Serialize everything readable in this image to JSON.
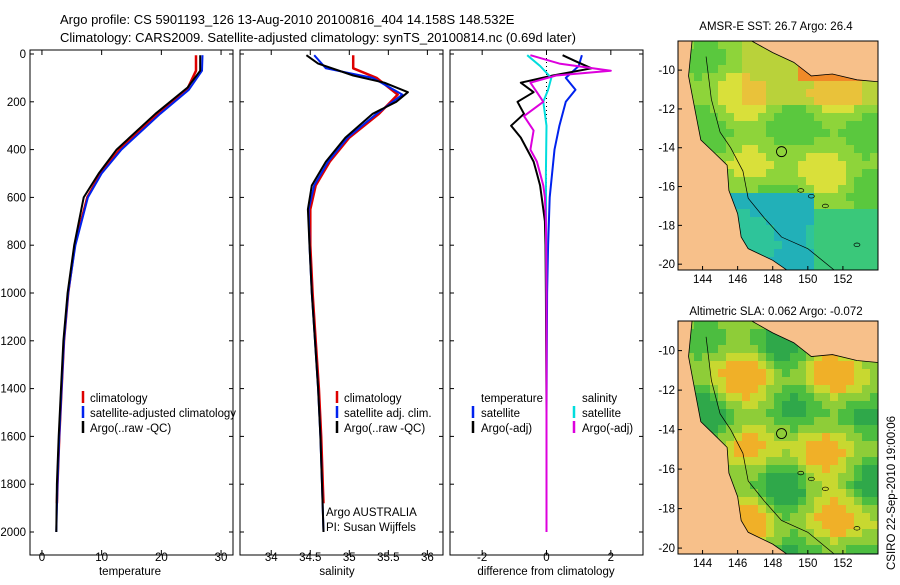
{
  "header": {
    "title_line1": "Argo profile: CS 5901193_126 13-Aug-2010 20100816_404 14.158S 148.532E",
    "title_line2": "Climatology: CARS2009. Satellite-adjusted climatology: synTS_20100814.nc (0.69d later)"
  },
  "footer": {
    "credit": "CSIRO 22-Sep-2010 19:00:06",
    "argo_center": "Argo AUSTRALIA",
    "pi": "PI: Susan Wijffels"
  },
  "colors": {
    "climatology": "#dd0000",
    "satellite": "#0022ee",
    "argo": "#000000",
    "sat_diff": "#00dddd",
    "argo_sal_diff": "#dd00dd",
    "land": "#f7c08a"
  },
  "chart_data": [
    {
      "type": "line",
      "id": "temperature",
      "xlabel": "temperature",
      "ylabel": "",
      "xlim": [
        -2,
        32
      ],
      "ylim": [
        2050,
        0
      ],
      "xticks": [
        "0",
        "10",
        "20",
        "30"
      ],
      "yticks": [
        "0",
        "200",
        "400",
        "600",
        "800",
        "1000",
        "1200",
        "1400",
        "1600",
        "1800",
        "2000"
      ],
      "legend": [
        "climatology",
        "satellite-adjusted climatology",
        "Argo(..raw -QC)"
      ],
      "series": [
        {
          "name": "climatology",
          "depth": [
            5,
            70,
            150,
            250,
            400,
            500,
            600,
            800,
            1000,
            1200,
            1400,
            1600,
            1800,
            1880
          ],
          "values": [
            25.8,
            25.8,
            24.3,
            19.5,
            13.0,
            9.8,
            7.6,
            5.5,
            4.4,
            3.7,
            3.3,
            2.9,
            2.6,
            2.5
          ]
        },
        {
          "name": "satellite-adjusted climatology",
          "depth": [
            5,
            70,
            150,
            250,
            400,
            500,
            600,
            800,
            1000,
            1200,
            1400,
            1600,
            1800,
            2000
          ],
          "values": [
            26.9,
            26.8,
            24.6,
            19.8,
            13.3,
            10.0,
            7.7,
            5.6,
            4.4,
            3.7,
            3.3,
            2.9,
            2.6,
            2.4
          ]
        },
        {
          "name": "Argo(..raw -QC)",
          "depth": [
            5,
            70,
            140,
            250,
            400,
            500,
            600,
            800,
            1000,
            1200,
            1400,
            1600,
            1800,
            2000
          ],
          "values": [
            26.5,
            26.5,
            24.4,
            19.0,
            12.5,
            9.5,
            7.0,
            5.4,
            4.3,
            3.6,
            3.2,
            2.8,
            2.5,
            2.4
          ]
        }
      ]
    },
    {
      "type": "line",
      "id": "salinity",
      "xlabel": "salinity",
      "xlim": [
        33.6,
        36.2
      ],
      "ylim": [
        2050,
        0
      ],
      "xticks": [
        "34",
        "34.5",
        "35",
        "35.5",
        "36"
      ],
      "legend": [
        "climatology",
        "satellite adj. clim.",
        "Argo(..raw -QC)"
      ],
      "series": [
        {
          "name": "climatology",
          "depth": [
            5,
            60,
            100,
            170,
            250,
            350,
            450,
            550,
            650,
            800,
            1000,
            1200,
            1400,
            1600,
            1800,
            1880
          ],
          "values": [
            35.05,
            35.05,
            35.35,
            35.62,
            35.38,
            35.0,
            34.75,
            34.57,
            34.5,
            34.5,
            34.53,
            34.57,
            34.61,
            34.64,
            34.66,
            34.67
          ]
        },
        {
          "name": "satellite adj. clim.",
          "depth": [
            5,
            60,
            100,
            170,
            250,
            350,
            450,
            550,
            650,
            800,
            1000,
            1200,
            1400,
            1600,
            1800,
            2000
          ],
          "values": [
            34.55,
            34.7,
            35.3,
            35.68,
            35.35,
            34.98,
            34.73,
            34.55,
            34.48,
            34.49,
            34.52,
            34.56,
            34.6,
            34.63,
            34.65,
            34.67
          ]
        },
        {
          "name": "Argo(..raw -QC)",
          "depth": [
            5,
            40,
            90,
            120,
            160,
            200,
            250,
            350,
            450,
            550,
            650,
            800,
            1000,
            1200,
            1400,
            1600,
            1800,
            2000
          ],
          "values": [
            34.45,
            34.6,
            35.05,
            35.45,
            35.75,
            35.6,
            35.3,
            34.95,
            34.7,
            34.52,
            34.47,
            34.49,
            34.52,
            34.56,
            34.6,
            34.63,
            34.65,
            34.67
          ]
        }
      ]
    },
    {
      "type": "line",
      "id": "difference",
      "xlabel": "difference from climatology",
      "xlim": [
        -3,
        3
      ],
      "ylim": [
        2050,
        0
      ],
      "xticks": [
        "-2",
        "0",
        "2"
      ],
      "legend_left": {
        "title": "temperature",
        "items": [
          "satellite",
          "Argo(-adj)"
        ]
      },
      "legend_right": {
        "title": "salinity",
        "items": [
          "satellite",
          "Argo(-adj)"
        ]
      },
      "series": [
        {
          "name": "temperature satellite",
          "depth": [
            5,
            50,
            100,
            150,
            200,
            300,
            400,
            600,
            800,
            1000,
            1500,
            2000
          ],
          "values": [
            1.1,
            1.0,
            0.6,
            0.9,
            0.6,
            0.4,
            0.25,
            0.1,
            0.05,
            0.02,
            0.0,
            0.0
          ]
        },
        {
          "name": "temperature Argo(-adj)",
          "depth": [
            5,
            30,
            60,
            90,
            120,
            160,
            200,
            250,
            300,
            350,
            400,
            450,
            500,
            550,
            600,
            650,
            700,
            800,
            1000,
            1500,
            2000
          ],
          "values": [
            0.5,
            0.9,
            1.4,
            0.2,
            -0.8,
            -0.4,
            -0.9,
            -0.7,
            -1.1,
            -0.8,
            -0.6,
            -0.4,
            -0.3,
            -0.2,
            -0.15,
            -0.1,
            -0.05,
            -0.03,
            -0.02,
            0.0,
            0.0
          ]
        },
        {
          "name": "salinity satellite",
          "depth": [
            5,
            50,
            100,
            150,
            200,
            300,
            500,
            800,
            1200,
            1600,
            2000
          ],
          "values": [
            -0.6,
            -0.2,
            0.15,
            0.05,
            -0.1,
            0.0,
            -0.02,
            -0.01,
            0.0,
            0.0,
            0.0
          ]
        },
        {
          "name": "salinity Argo(-adj)",
          "depth": [
            5,
            40,
            70,
            90,
            120,
            160,
            200,
            260,
            320,
            400,
            450,
            500,
            550,
            600,
            700,
            800,
            1000,
            2000
          ],
          "values": [
            -0.5,
            0.4,
            2.0,
            0.3,
            -0.5,
            -0.3,
            -0.1,
            -0.7,
            -0.4,
            -0.5,
            -0.3,
            -0.2,
            -0.1,
            -0.05,
            -0.02,
            -0.01,
            0.0,
            0.0
          ]
        }
      ]
    },
    {
      "type": "heatmap",
      "id": "sst_map",
      "title": "AMSR-E SST: 26.7  Argo: 26.4",
      "xticks": [
        "144",
        "146",
        "148",
        "150",
        "152"
      ],
      "yticks": [
        "-10",
        "-12",
        "-14",
        "-16",
        "-18",
        "-20"
      ],
      "marker": {
        "lon": 148.5,
        "lat": -14.2
      }
    },
    {
      "type": "heatmap",
      "id": "sla_map",
      "title": "Altimetric SLA: 0.062  Argo: -0.072",
      "xticks": [
        "144",
        "146",
        "148",
        "150",
        "152"
      ],
      "yticks": [
        "-10",
        "-12",
        "-14",
        "-16",
        "-18",
        "-20"
      ],
      "marker": {
        "lon": 148.5,
        "lat": -14.2
      }
    }
  ]
}
